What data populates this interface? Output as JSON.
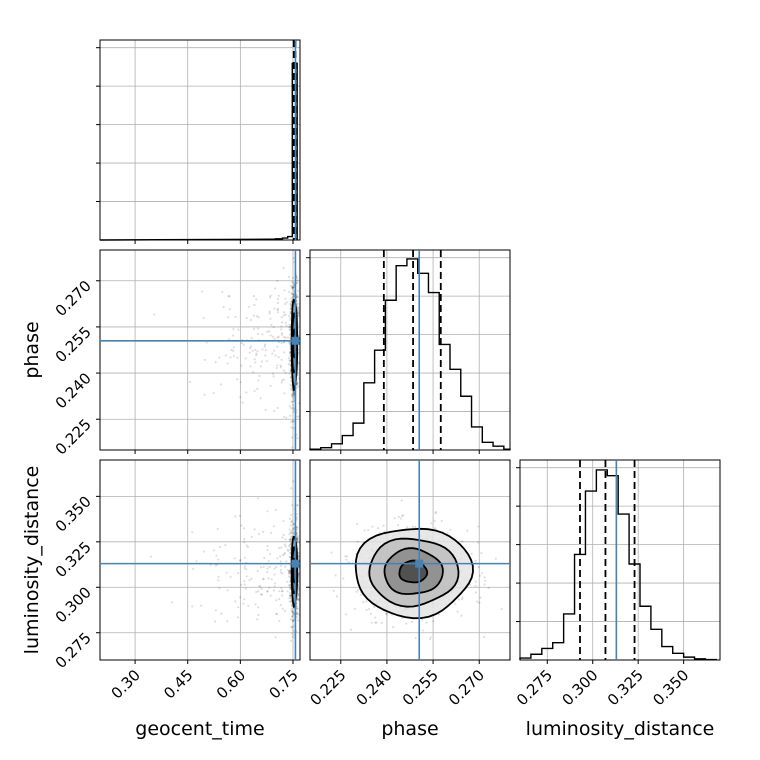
{
  "chart_data": {
    "type": "corner",
    "parameters": [
      "geocent_time",
      "phase",
      "luminosity_distance"
    ],
    "axis_labels": {
      "geocent_time": "geocent_time",
      "phase": "phase",
      "luminosity_distance": "luminosity_distance"
    },
    "ranges": {
      "geocent_time": [
        0.2,
        0.77
      ],
      "phase": [
        0.215,
        0.28
      ],
      "luminosity_distance": [
        0.26,
        0.37
      ]
    },
    "ticks": {
      "geocent_time": [
        "0.30",
        "0.45",
        "0.60",
        "0.75"
      ],
      "phase": [
        "0.225",
        "0.240",
        "0.255",
        "0.270"
      ],
      "phase_row": [
        "0.225",
        "0.240",
        "0.255",
        "0.270"
      ],
      "luminosity_distance": [
        "0.275",
        "0.300",
        "0.325",
        "0.350"
      ]
    },
    "truths": {
      "geocent_time": 0.757,
      "phase": 0.2505,
      "luminosity_distance": 0.313
    },
    "quantiles": {
      "geocent_time": [
        0.752,
        0.755,
        0.757
      ],
      "phase": [
        0.239,
        0.2485,
        0.2575
      ],
      "luminosity_distance": [
        0.293,
        0.307,
        0.323
      ]
    },
    "histograms": {
      "geocent_time": {
        "edges": [
          0.68,
          0.7,
          0.72,
          0.735,
          0.748,
          0.762
        ],
        "counts": [
          0.004,
          0.006,
          0.01,
          0.018,
          0.92
        ]
      },
      "phase": {
        "edges": [
          0.215,
          0.2185,
          0.222,
          0.2255,
          0.229,
          0.2325,
          0.236,
          0.2395,
          0.243,
          0.2465,
          0.25,
          0.2535,
          0.257,
          0.2605,
          0.264,
          0.2675,
          0.271,
          0.2745,
          0.278,
          0.2815
        ],
        "counts": [
          0.004,
          0.012,
          0.032,
          0.075,
          0.14,
          0.35,
          0.52,
          0.78,
          0.96,
          0.995,
          0.92,
          0.82,
          0.55,
          0.42,
          0.28,
          0.12,
          0.04,
          0.02,
          0.004
        ]
      },
      "luminosity_distance": {
        "edges": [
          0.26,
          0.266,
          0.272,
          0.278,
          0.284,
          0.29,
          0.296,
          0.302,
          0.308,
          0.314,
          0.32,
          0.326,
          0.332,
          0.338,
          0.344,
          0.35,
          0.356,
          0.362,
          0.368
        ],
        "counts": [
          0.01,
          0.03,
          0.06,
          0.09,
          0.24,
          0.55,
          0.88,
          0.99,
          0.96,
          0.76,
          0.5,
          0.28,
          0.16,
          0.07,
          0.035,
          0.015,
          0.006,
          0.002
        ]
      }
    },
    "contours": {
      "phase_vs_luminosity_distance": {
        "center": [
          0.2485,
          0.3085
        ],
        "levels": [
          {
            "dx": 0.0045,
            "dy": 0.006
          },
          {
            "dx": 0.0095,
            "dy": 0.0125
          },
          {
            "dx": 0.0145,
            "dy": 0.0185
          },
          {
            "dx": 0.019,
            "dy": 0.0245
          }
        ]
      },
      "geocent_time_vs_phase": {
        "center": [
          0.754,
          0.2495
        ],
        "levels": [
          {
            "dx": 0.004,
            "dy": 0.0045
          },
          {
            "dx": 0.0065,
            "dy": 0.0095
          },
          {
            "dx": 0.008,
            "dy": 0.0145
          }
        ]
      },
      "geocent_time_vs_luminosity_distance": {
        "center": [
          0.754,
          0.309
        ],
        "levels": [
          {
            "dx": 0.004,
            "dy": 0.0065
          },
          {
            "dx": 0.0065,
            "dy": 0.0125
          },
          {
            "dx": 0.008,
            "dy": 0.019
          }
        ]
      }
    },
    "grid": true
  }
}
